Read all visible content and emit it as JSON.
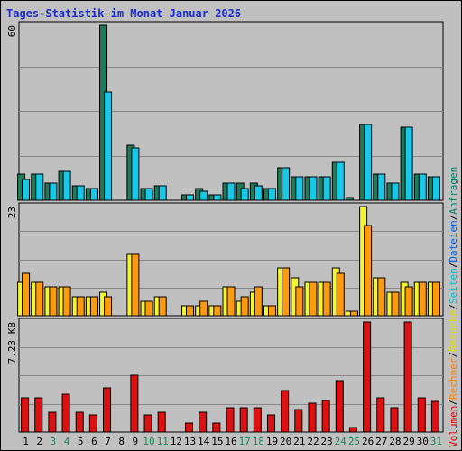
{
  "title": "Tages-Statistik im Monat Januar 2026",
  "right_legend": {
    "items": [
      {
        "text": "Volumen",
        "color": "#e00000"
      },
      {
        "text": "/",
        "color": "#000000"
      },
      {
        "text": "Rechner",
        "color": "#ff8000"
      },
      {
        "text": "/",
        "color": "#000000"
      },
      {
        "text": "Besuche",
        "color": "#e0e000"
      },
      {
        "text": "/",
        "color": "#000000"
      },
      {
        "text": "Seiten",
        "color": "#00c0d0"
      },
      {
        "text": "/",
        "color": "#000000"
      },
      {
        "text": "Dateien",
        "color": "#0060e0"
      },
      {
        "text": "/",
        "color": "#000000"
      },
      {
        "text": "Anfragen",
        "color": "#008060"
      }
    ]
  },
  "chart_data": {
    "type": "bar",
    "title": "Tages-Statistik im Monat Januar 2026",
    "days": [
      "1",
      "2",
      "3",
      "4",
      "5",
      "6",
      "7",
      "8",
      "9",
      "10",
      "11",
      "12",
      "13",
      "14",
      "15",
      "16",
      "17",
      "18",
      "19",
      "20",
      "21",
      "22",
      "23",
      "24",
      "25",
      "26",
      "27",
      "28",
      "29",
      "30",
      "31"
    ],
    "weekend_days": [
      "3",
      "4",
      "10",
      "11",
      "17",
      "18",
      "24",
      "25",
      "31"
    ],
    "panels": [
      {
        "name": "hits",
        "ylabel": "60",
        "ymax": 60,
        "series": [
          {
            "name": "Anfragen",
            "color": "#1e7a5a",
            "values": [
              9,
              9,
              6,
              10,
              5,
              4,
              60,
              0,
              19,
              4,
              5,
              0,
              2,
              4,
              2,
              6,
              6,
              6,
              4,
              11,
              8,
              8,
              8,
              13,
              1,
              26,
              9,
              6,
              25,
              9,
              8
            ]
          },
          {
            "name": "Dateien",
            "color": "#18c8e8",
            "values": [
              7,
              9,
              6,
              10,
              5,
              4,
              37,
              0,
              18,
              4,
              5,
              0,
              2,
              3,
              2,
              6,
              4,
              5,
              4,
              11,
              8,
              8,
              8,
              13,
              0,
              26,
              9,
              6,
              25,
              9,
              8
            ]
          }
        ]
      },
      {
        "name": "visits",
        "ylabel": "23",
        "ymax": 23,
        "series": [
          {
            "name": "Besuche",
            "color": "#f4f430",
            "values": [
              7,
              7,
              6,
              6,
              4,
              4,
              5,
              0,
              13,
              3,
              4,
              0,
              2,
              2,
              2,
              6,
              3,
              5,
              2,
              10,
              8,
              7,
              7,
              10,
              1,
              23,
              8,
              5,
              7,
              7,
              7
            ]
          },
          {
            "name": "Rechner",
            "color": "#ff9a10",
            "values": [
              9,
              7,
              6,
              6,
              4,
              4,
              4,
              0,
              13,
              3,
              4,
              0,
              2,
              3,
              2,
              6,
              4,
              6,
              2,
              10,
              6,
              7,
              7,
              9,
              1,
              19,
              8,
              5,
              6,
              7,
              7
            ]
          }
        ]
      },
      {
        "name": "volume",
        "ylabel": "7.23 KB",
        "ymax": 7.23,
        "series": [
          {
            "name": "Volumen",
            "color": "#e01010",
            "values": [
              2.25,
              2.25,
              1.3,
              2.5,
              1.3,
              1.1,
              2.9,
              0,
              3.75,
              1.1,
              1.3,
              0,
              0.6,
              1.3,
              0.6,
              1.6,
              1.6,
              1.6,
              1.1,
              2.7,
              1.5,
              1.9,
              2.1,
              3.4,
              0.3,
              7.23,
              2.25,
              1.6,
              7.23,
              2.25,
              2.0
            ]
          }
        ]
      }
    ],
    "grid": true
  }
}
